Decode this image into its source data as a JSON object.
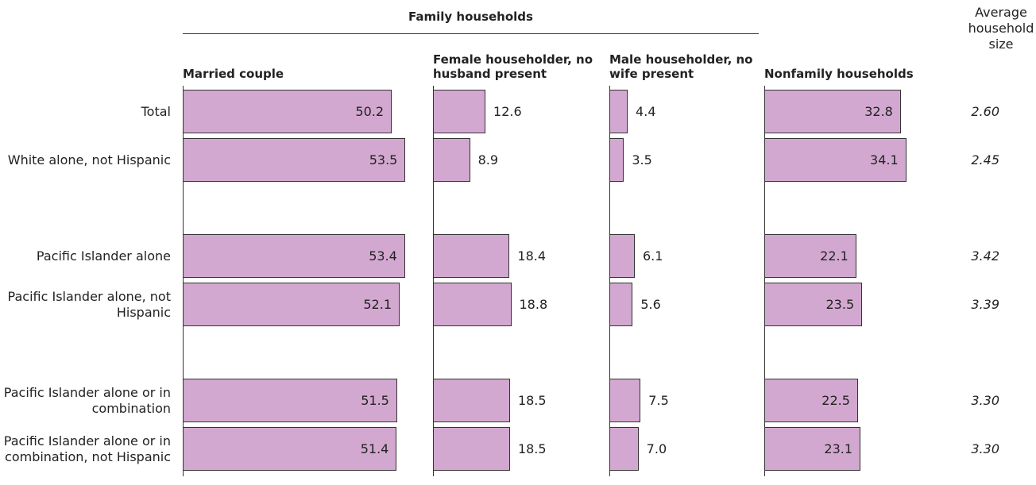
{
  "chart_data": {
    "type": "bar",
    "title": "Family households",
    "categories": [
      "Total",
      "White alone, not Hispanic",
      "Pacific Islander alone",
      "Pacific Islander alone, not Hispanic",
      "Pacific Islander alone or in combination",
      "Pacific Islander alone or in combination, not Hispanic"
    ],
    "series": [
      {
        "name": "Married couple",
        "color": "#d3a8d0",
        "values": [
          50.2,
          53.5,
          53.4,
          52.1,
          51.5,
          51.4
        ]
      },
      {
        "name": "Female householder, no husband present",
        "color": "#d3a8d0",
        "values": [
          12.6,
          8.9,
          18.4,
          18.8,
          18.5,
          18.5
        ]
      },
      {
        "name": "Male householder, no wife present",
        "color": "#d3a8d0",
        "values": [
          4.4,
          3.5,
          6.1,
          5.6,
          7.5,
          7
        ],
        "value_labels": [
          "4.4",
          "3.5",
          "6.1",
          "5.6",
          "7.5",
          "7.0"
        ]
      },
      {
        "name": "Nonfamily households",
        "color": "#d3a8d0",
        "values": [
          32.8,
          34.1,
          22.1,
          23.5,
          22.5,
          23.1
        ]
      }
    ],
    "average_household_size": {
      "label": "Average household size",
      "values": [
        2.6,
        2.45,
        3.42,
        3.39,
        3.3,
        3.3
      ],
      "value_labels": [
        "2.60",
        "2.45",
        "3.42",
        "3.39",
        "3.30",
        "3.30"
      ]
    }
  }
}
